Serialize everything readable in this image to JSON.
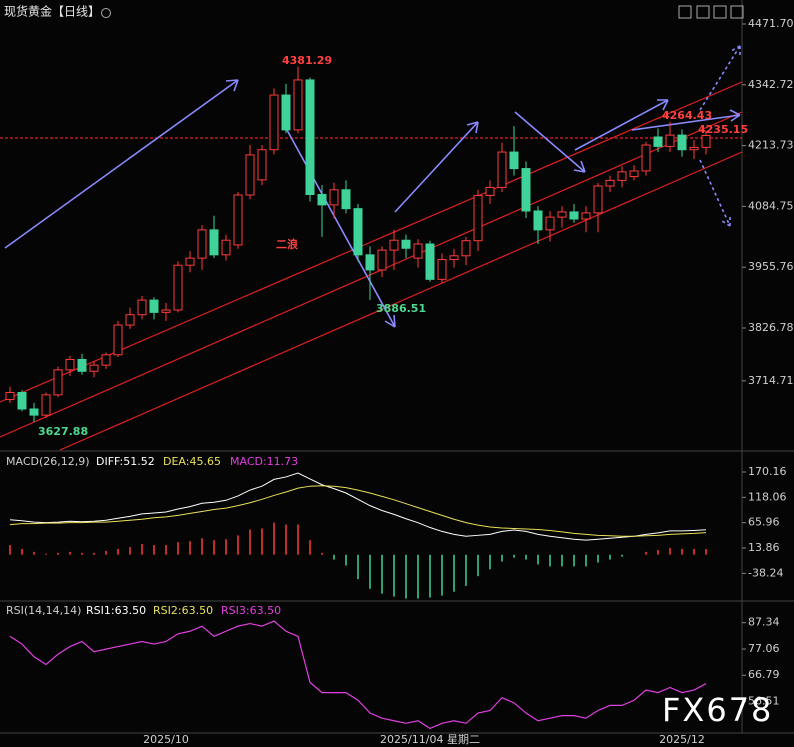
{
  "header": {
    "title": "现货黄金【日线】"
  },
  "chart_data": [
    {
      "type": "candlestick",
      "categories": [
        null,
        null,
        null,
        null,
        null,
        null,
        null,
        null,
        null,
        null,
        null,
        null,
        null,
        "2025/10",
        null,
        null,
        null,
        null,
        null,
        null,
        null,
        null,
        null,
        null,
        null,
        null,
        null,
        null,
        null,
        null,
        null,
        null,
        null,
        null,
        null,
        "2025/11/04 星期二",
        null,
        null,
        null,
        null,
        null,
        null,
        null,
        null,
        null,
        null,
        null,
        null,
        null,
        null,
        null,
        null,
        null,
        null,
        null,
        null,
        "2025/12",
        null,
        null
      ],
      "open": [
        3675,
        3690,
        3655,
        3642,
        3685,
        3738,
        3760,
        3735,
        3748,
        3770,
        3833,
        3855,
        3886,
        3860,
        3865,
        3960,
        3975,
        4035,
        3982,
        4003,
        4109,
        4141,
        4205,
        4321,
        4247,
        4353,
        4110,
        4088,
        4120,
        4080,
        3982,
        3950,
        3992,
        4013,
        3975,
        4005,
        3930,
        3972,
        3980,
        4012,
        4108,
        4125,
        4200,
        4165,
        4075,
        4035,
        4062,
        4073,
        4058,
        4071,
        4128,
        4140,
        4148,
        4160,
        4232,
        4212,
        4236,
        4205,
        4210
      ],
      "high": [
        3702,
        3695,
        3668,
        3690,
        3745,
        3768,
        3772,
        3755,
        3775,
        3842,
        3870,
        3895,
        3892,
        3880,
        3968,
        3990,
        4045,
        4065,
        4025,
        4115,
        4215,
        4215,
        4335,
        4345,
        4381.29,
        4358,
        4130,
        4135,
        4140,
        4090,
        4000,
        4000,
        4035,
        4025,
        4015,
        4012,
        3985,
        3995,
        4020,
        4120,
        4140,
        4220,
        4255,
        4180,
        4085,
        4075,
        4085,
        4090,
        4085,
        4135,
        4150,
        4170,
        4172,
        4222,
        4250,
        4264.43,
        4248,
        4225,
        4245
      ],
      "low": [
        3668,
        3650,
        3627.88,
        3636,
        3680,
        3725,
        3728,
        3722,
        3740,
        3765,
        3825,
        3845,
        3845,
        3842,
        3860,
        3945,
        3950,
        3975,
        3970,
        3995,
        4100,
        4130,
        4195,
        4240,
        4240,
        4095,
        4020,
        4060,
        4070,
        3968,
        3886.51,
        3935,
        3950,
        3975,
        3955,
        3925,
        3922,
        3955,
        3960,
        3990,
        4090,
        4115,
        4150,
        4060,
        4005,
        4010,
        4040,
        4050,
        4030,
        4030,
        4115,
        4125,
        4140,
        4150,
        4200,
        4200,
        4190,
        4185,
        4195
      ],
      "close": [
        3690,
        3655,
        3642,
        3685,
        3738,
        3760,
        3735,
        3748,
        3770,
        3833,
        3855,
        3886,
        3860,
        3865,
        3960,
        3975,
        4035,
        3982,
        4013,
        4109,
        4194,
        4205,
        4321,
        4247,
        4353,
        4110,
        4088,
        4120,
        4080,
        3982,
        3950,
        3992,
        4013,
        3996,
        4005,
        3930,
        3972,
        3980,
        4012,
        4108,
        4125,
        4200,
        4165,
        4075,
        4035,
        4062,
        4073,
        4058,
        4071,
        4128,
        4140,
        4158,
        4160,
        4215,
        4212,
        4236,
        4205,
        4210,
        4235.15
      ],
      "up_color": "#ff3b3b",
      "down_color": "#3fd39a",
      "ylim": [
        3568,
        4522.6
      ],
      "yticks": [
        {
          "value": 4471.7,
          "label": "4471.70"
        },
        4342.72,
        4213.73,
        4084.75,
        3955.76,
        3826.78,
        3714.71
      ],
      "annotations": [
        "4381.29",
        "3886.51",
        "3627.88",
        "4264.43",
        "4235.15",
        "二浪"
      ]
    },
    {
      "type": "macd",
      "title": "MACD(26,12,9)",
      "series": [
        {
          "name": "DIFF:51.52",
          "color": "#ffffff",
          "values": [
            72,
            70,
            67,
            66,
            67,
            69,
            68,
            69,
            71,
            75,
            79,
            84,
            86,
            88,
            94,
            99,
            106,
            108,
            112,
            121,
            133,
            141,
            155,
            160,
            168,
            156,
            144,
            136,
            127,
            114,
            101,
            91,
            83,
            74,
            66,
            56,
            48,
            42,
            38,
            40,
            42,
            48,
            51,
            48,
            42,
            38,
            35,
            32,
            30,
            32,
            34,
            36,
            38,
            42,
            45,
            49,
            49,
            50,
            51.52
          ]
        },
        {
          "name": "DEA:45.65",
          "color": "#e8e05a",
          "values": [
            62,
            64,
            64,
            65,
            65,
            66,
            66,
            67,
            67,
            69,
            71,
            73,
            76,
            78,
            81,
            85,
            89,
            93,
            96,
            101,
            107,
            114,
            122,
            129,
            137,
            141,
            142,
            141,
            138,
            133,
            127,
            120,
            113,
            105,
            97,
            89,
            81,
            73,
            66,
            61,
            57,
            55,
            54,
            53,
            52,
            50,
            47,
            44,
            42,
            40,
            39,
            38,
            38,
            39,
            40,
            42,
            43,
            44,
            45.65
          ]
        },
        {
          "name": "MACD:11.73",
          "color": "#e040e0",
          "values": [
            20,
            12,
            6,
            2,
            4,
            6,
            4,
            4,
            8,
            12,
            16,
            22,
            20,
            20,
            26,
            28,
            34,
            30,
            32,
            40,
            52,
            54,
            66,
            62,
            62,
            30,
            4,
            -10,
            -22,
            -50,
            -70,
            -80,
            -86,
            -90,
            -90,
            -88,
            -84,
            -76,
            -64,
            -44,
            -30,
            -14,
            -6,
            -10,
            -20,
            -24,
            -24,
            -24,
            -24,
            -16,
            -10,
            -4,
            0,
            6,
            10,
            14,
            12,
            12,
            11.73
          ]
        }
      ],
      "up_color": "#ff3b3b",
      "down_color": "#3fd39a",
      "ylim": [
        -93,
        211.3
      ],
      "yticks": [
        170.16,
        118.06,
        65.96,
        13.86,
        -38.24
      ]
    },
    {
      "type": "line",
      "title": "RSI(14,14,14)",
      "legend": [
        {
          "text": "RSI1:63.50",
          "color": "#ffffff"
        },
        {
          "text": "RSI2:63.50",
          "color": "#e8e05a"
        },
        {
          "text": "RSI3:63.50",
          "color": "#e040e0"
        }
      ],
      "color": "#e040e0",
      "values": [
        82,
        79,
        74,
        71,
        75,
        78,
        80,
        76,
        77,
        78,
        79,
        80,
        79,
        80,
        83,
        84,
        86,
        82,
        84,
        86,
        87,
        86,
        88,
        84,
        82,
        64,
        60,
        60,
        60,
        57,
        52,
        50,
        49,
        48,
        49,
        46,
        48,
        49,
        48,
        52,
        53,
        58,
        56,
        52,
        49,
        50,
        51,
        51,
        50,
        53,
        55,
        55,
        57,
        61,
        60,
        62,
        60,
        61,
        63.5
      ],
      "ylim": [
        44.2,
        95.05
      ],
      "yticks": [
        87.34,
        77.06,
        66.79,
        56.51
      ]
    }
  ]
}
